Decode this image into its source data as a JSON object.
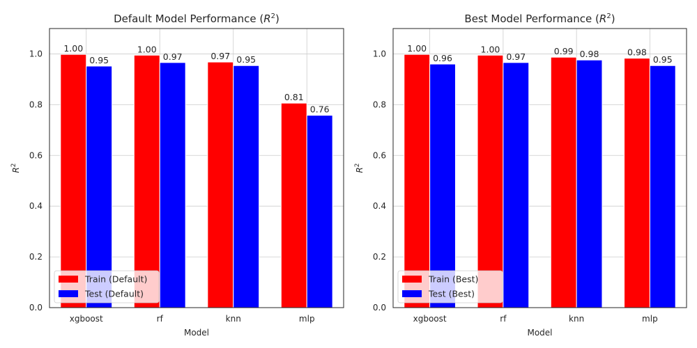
{
  "chart_data": [
    {
      "type": "bar",
      "title": "Default Model Performance (R²)",
      "title_main": "Default Model Performance (",
      "title_var": "R",
      "title_sup": "2",
      "title_close": ")",
      "xlabel": "Model",
      "ylabel": "R",
      "ylabel_sup": "2",
      "categories": [
        "xgboost",
        "rf",
        "knn",
        "mlp"
      ],
      "series": [
        {
          "name": "Train (Default)",
          "color": "#ff0000",
          "values": [
            0.998,
            0.995,
            0.968,
            0.806
          ],
          "labels": [
            "1.00",
            "1.00",
            "0.97",
            "0.81"
          ]
        },
        {
          "name": "Test (Default)",
          "color": "#0000ff",
          "values": [
            0.952,
            0.966,
            0.954,
            0.758
          ],
          "labels": [
            "0.95",
            "0.97",
            "0.95",
            "0.76"
          ]
        }
      ],
      "ylim": [
        0,
        1.1
      ],
      "yticks": [
        "0.0",
        "0.2",
        "0.4",
        "0.6",
        "0.8",
        "1.0"
      ],
      "grid": true,
      "legend_position": "lower-left"
    },
    {
      "type": "bar",
      "title": "Best Model Performance (R²)",
      "title_main": "Best Model Performance (",
      "title_var": "R",
      "title_sup": "2",
      "title_close": ")",
      "xlabel": "Model",
      "ylabel": "R",
      "ylabel_sup": "2",
      "categories": [
        "xgboost",
        "rf",
        "knn",
        "mlp"
      ],
      "series": [
        {
          "name": "Train (Best)",
          "color": "#ff0000",
          "values": [
            0.998,
            0.995,
            0.987,
            0.983
          ],
          "labels": [
            "1.00",
            "1.00",
            "0.99",
            "0.98"
          ]
        },
        {
          "name": "Test (Best)",
          "color": "#0000ff",
          "values": [
            0.96,
            0.966,
            0.976,
            0.954
          ],
          "labels": [
            "0.96",
            "0.97",
            "0.98",
            "0.95"
          ]
        }
      ],
      "ylim": [
        0,
        1.1
      ],
      "yticks": [
        "0.0",
        "0.2",
        "0.4",
        "0.6",
        "0.8",
        "1.0"
      ],
      "grid": true,
      "legend_position": "lower-left"
    }
  ]
}
